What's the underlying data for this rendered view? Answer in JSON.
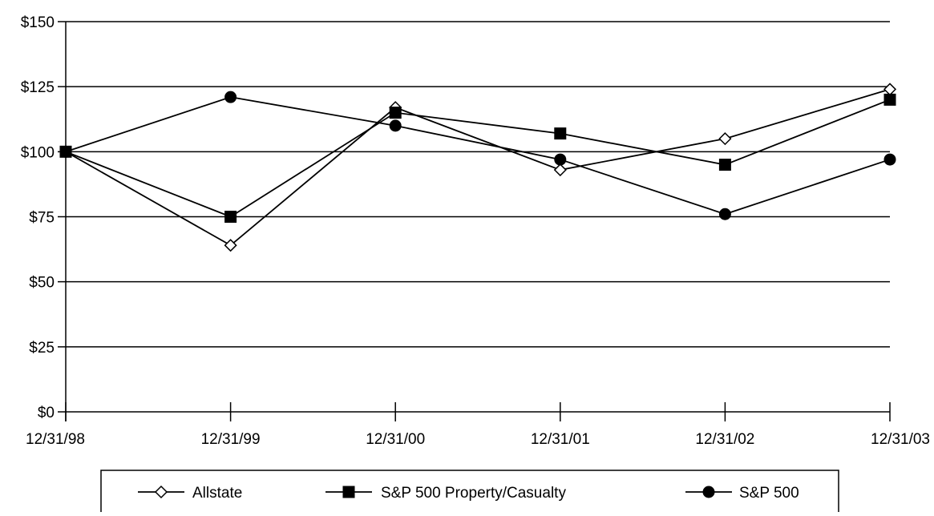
{
  "chart_data": {
    "type": "line",
    "categories": [
      "12/31/98",
      "12/31/99",
      "12/31/00",
      "12/31/01",
      "12/31/02",
      "12/31/03"
    ],
    "series": [
      {
        "name": "Allstate",
        "marker": "diamond-open",
        "values": [
          100,
          64,
          117,
          93,
          105,
          124
        ]
      },
      {
        "name": "S&P 500 Property/Casualty",
        "marker": "square-filled",
        "values": [
          100,
          75,
          115,
          107,
          95,
          120
        ]
      },
      {
        "name": "S&P 500",
        "marker": "circle-filled",
        "values": [
          100,
          121,
          110,
          97,
          76,
          97
        ]
      }
    ],
    "y_ticks": [
      "$0",
      "$25",
      "$50",
      "$75",
      "$100",
      "$125",
      "$150"
    ],
    "y_tick_values": [
      0,
      25,
      50,
      75,
      100,
      125,
      150
    ],
    "ylim": [
      0,
      150
    ],
    "grid": "horizontal",
    "legend_position": "bottom"
  },
  "colors": {
    "line": "#000000",
    "grid": "#000000",
    "background": "#ffffff"
  }
}
